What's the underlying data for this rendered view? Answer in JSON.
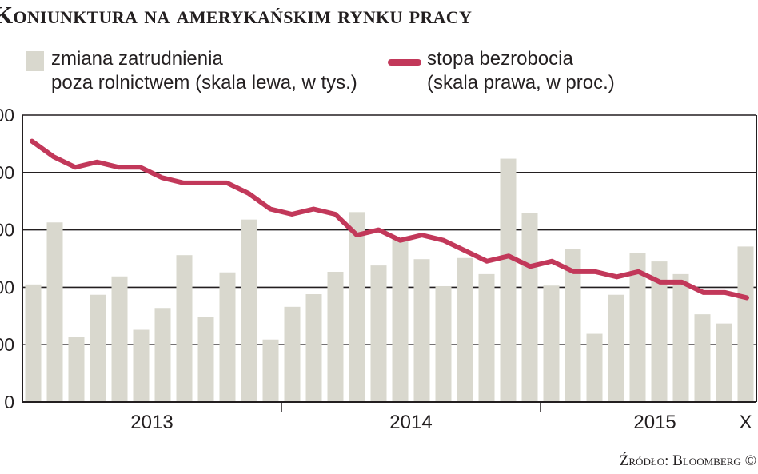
{
  "title": "Koniunktura na amerykańskim rynku pracy",
  "legend": {
    "bars_line1": "zmiana zatrudnienia",
    "bars_line2": "poza rolnictwem (skala lewa, w tys.)",
    "line_line1": "stopa bezrobocia",
    "line_line2": "(skala prawa, w proc.)"
  },
  "source": "Źródło: Bloomberg ©",
  "colors": {
    "bars": "#d9d8ce",
    "line": "#c2385a",
    "grid": "#231f20"
  },
  "chart_data": {
    "type": "bar",
    "title": "Koniunktura na amerykańskim rynku pracy",
    "x_labels": [
      "2013",
      "2014",
      "2015",
      "X"
    ],
    "y_left_ticks": [
      "00",
      "00",
      "00",
      "00",
      "00",
      "0"
    ],
    "left_scale_reading": "tick values on the left axis are cropped; bar heights below are expressed in thousands assuming 100 per gridline",
    "ylim_left": [
      0,
      500
    ],
    "grid": true,
    "categories": [
      "2013-01",
      "2013-02",
      "2013-03",
      "2013-04",
      "2013-05",
      "2013-06",
      "2013-07",
      "2013-08",
      "2013-09",
      "2013-10",
      "2013-11",
      "2013-12",
      "2014-01",
      "2014-02",
      "2014-03",
      "2014-04",
      "2014-05",
      "2014-06",
      "2014-07",
      "2014-08",
      "2014-09",
      "2014-10",
      "2014-11",
      "2014-12",
      "2015-01",
      "2015-02",
      "2015-03",
      "2015-04",
      "2015-05",
      "2015-06",
      "2015-07",
      "2015-08",
      "2015-09",
      "2015-10"
    ],
    "series": [
      {
        "name": "zmiana zatrudnienia poza rolnictwem (skala lewa, w tys.)",
        "kind": "bar",
        "axis": "left",
        "values": [
          205,
          313,
          113,
          187,
          219,
          126,
          164,
          256,
          149,
          226,
          318,
          109,
          166,
          188,
          227,
          331,
          238,
          286,
          249,
          202,
          251,
          223,
          424,
          329,
          203,
          266,
          119,
          187,
          260,
          245,
          223,
          153,
          137,
          271
        ]
      },
      {
        "name": "stopa bezrobocia (skala prawa, w proc.)",
        "kind": "line",
        "axis": "right",
        "values": [
          8.0,
          7.7,
          7.5,
          7.6,
          7.5,
          7.5,
          7.3,
          7.2,
          7.2,
          7.2,
          7.0,
          6.7,
          6.6,
          6.7,
          6.6,
          6.2,
          6.3,
          6.1,
          6.2,
          6.1,
          5.9,
          5.7,
          5.8,
          5.6,
          5.7,
          5.5,
          5.5,
          5.4,
          5.5,
          5.3,
          5.3,
          5.1,
          5.1,
          5.0
        ]
      }
    ],
    "ylim_right": [
      3.0,
      8.5
    ]
  }
}
